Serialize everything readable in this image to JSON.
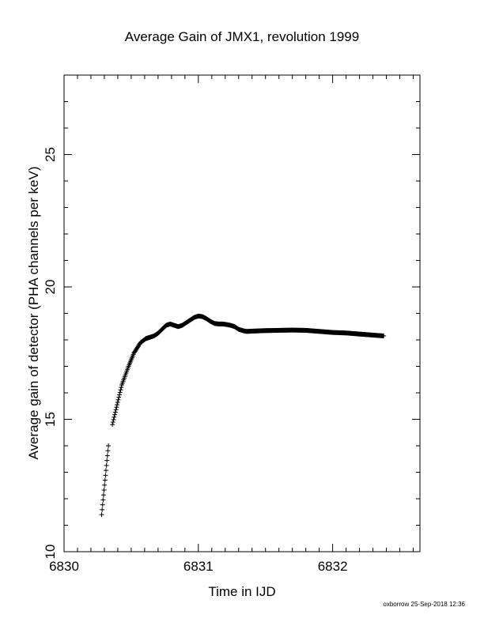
{
  "chart_data": {
    "type": "scatter",
    "title": "Average Gain of JMX1, revolution 1999",
    "xlabel": "Time in IJD",
    "ylabel": "Average gain of detector (PHA channels per keV)",
    "xlim": [
      6830,
      6832.65
    ],
    "ylim": [
      10,
      28
    ],
    "xticks": [
      6830,
      6831,
      6832
    ],
    "xtick_labels": [
      "6830",
      "6831",
      "6832"
    ],
    "yticks": [
      10,
      15,
      20,
      25
    ],
    "ytick_labels": [
      "10",
      "15",
      "20",
      "25"
    ],
    "grid": false,
    "marker": "+",
    "series": [
      {
        "color": "#000000",
        "segments": [
          {
            "x": [
              6830.28,
              6830.33
            ],
            "y": [
              11.4,
              14.0
            ]
          },
          {
            "x": [
              6830.36,
              6830.43,
              6830.48,
              6830.52,
              6830.57,
              6830.61
            ],
            "y": [
              14.8,
              16.3,
              17.0,
              17.5,
              17.9,
              18.05
            ]
          },
          {
            "x": [
              6830.61,
              6830.64,
              6830.67,
              6830.7,
              6830.73,
              6830.76,
              6830.79,
              6830.82,
              6830.85,
              6830.88,
              6830.91,
              6830.94,
              6830.97,
              6831.0,
              6831.03,
              6831.06,
              6831.09,
              6831.12,
              6831.15,
              6831.18,
              6831.21,
              6831.24,
              6831.27,
              6831.3,
              6831.33,
              6831.36,
              6831.4,
              6831.5,
              6831.6,
              6831.7,
              6831.8,
              6831.9,
              6832.0,
              6832.1,
              6832.2,
              6832.3,
              6832.38
            ],
            "y": [
              18.05,
              18.1,
              18.15,
              18.25,
              18.4,
              18.55,
              18.6,
              18.55,
              18.5,
              18.55,
              18.65,
              18.75,
              18.85,
              18.9,
              18.88,
              18.8,
              18.7,
              18.62,
              18.6,
              18.6,
              18.58,
              18.55,
              18.5,
              18.4,
              18.35,
              18.32,
              18.33,
              18.35,
              18.36,
              18.37,
              18.36,
              18.32,
              18.28,
              18.26,
              18.22,
              18.18,
              18.15
            ]
          }
        ]
      }
    ]
  },
  "footer": {
    "credit": "oxborrow 25-Sep-2018 12:36"
  }
}
